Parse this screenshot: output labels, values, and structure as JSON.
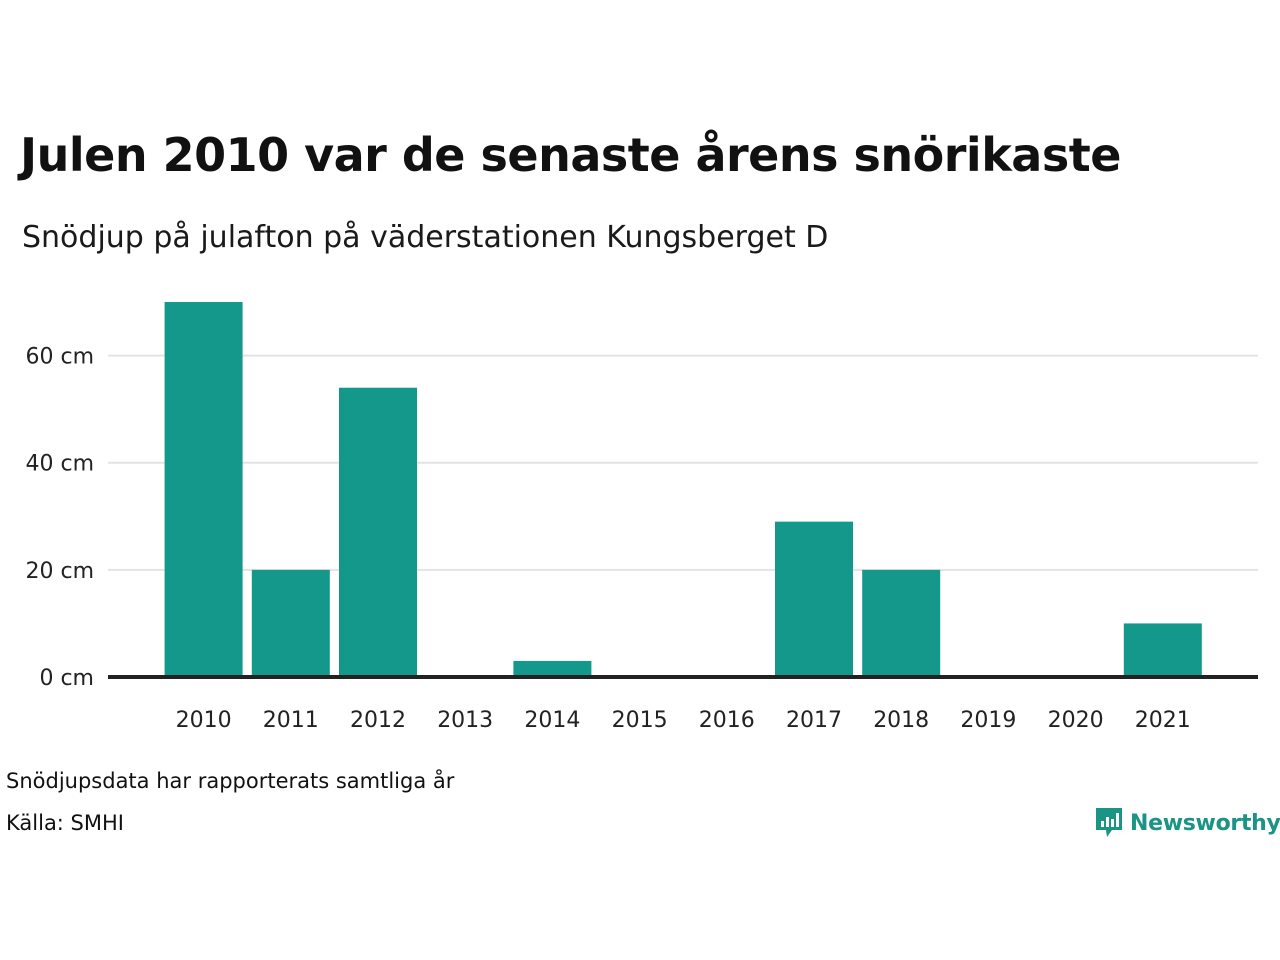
{
  "title": "Julen 2010 var de senaste årens snörikaste",
  "subtitle": "Snödjup på julafton på väderstationen Kungsberget D",
  "chart_data": {
    "type": "bar",
    "categories": [
      "2010",
      "2011",
      "2012",
      "2013",
      "2014",
      "2015",
      "2016",
      "2017",
      "2018",
      "2019",
      "2020",
      "2021"
    ],
    "values": [
      70,
      20,
      54,
      0,
      3,
      0,
      0,
      29,
      20,
      0,
      0,
      10
    ],
    "unit": "cm",
    "y_ticks": [
      0,
      20,
      40,
      60
    ],
    "y_tick_labels": [
      "0 cm",
      "20 cm",
      "40 cm",
      "60 cm"
    ],
    "ylim": [
      0,
      70
    ],
    "grid": true,
    "bar_color": "#14988b"
  },
  "footer": {
    "note": "Snödjupsdata har rapporterats samtliga år",
    "source": "Källa: SMHI"
  },
  "brand": {
    "name": "Newsworthy",
    "icon": "newsworthy-logo-icon",
    "color": "#1a9484"
  }
}
